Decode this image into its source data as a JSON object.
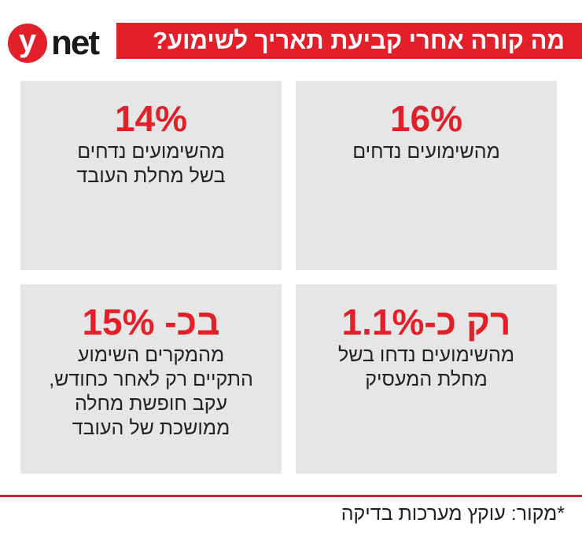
{
  "logo": {
    "letter": "y",
    "word": "net",
    "brand_color": "#e3202a"
  },
  "header": {
    "title": "מה קורה אחרי קביעת תאריך לשימוע?"
  },
  "stats": [
    {
      "value": "16%",
      "text": [
        "מהשימועים נדחים"
      ]
    },
    {
      "value": "14%",
      "text": [
        "מהשימועים נדחים",
        "בשל מחלת העובד"
      ]
    },
    {
      "value": "רק כ-1.1%",
      "text": [
        "מהשימועים נדחו בשל",
        "מחלת המעסיק"
      ]
    },
    {
      "value": "בכ- 15%",
      "text": [
        "מהמקרים השימוע",
        "התקיים רק לאחר כחודש,",
        "עקב חופשת מחלה",
        "ממושכת של העובד"
      ]
    }
  ],
  "footer": {
    "source": "*מקור: עוקץ מערכות בדיקה"
  }
}
